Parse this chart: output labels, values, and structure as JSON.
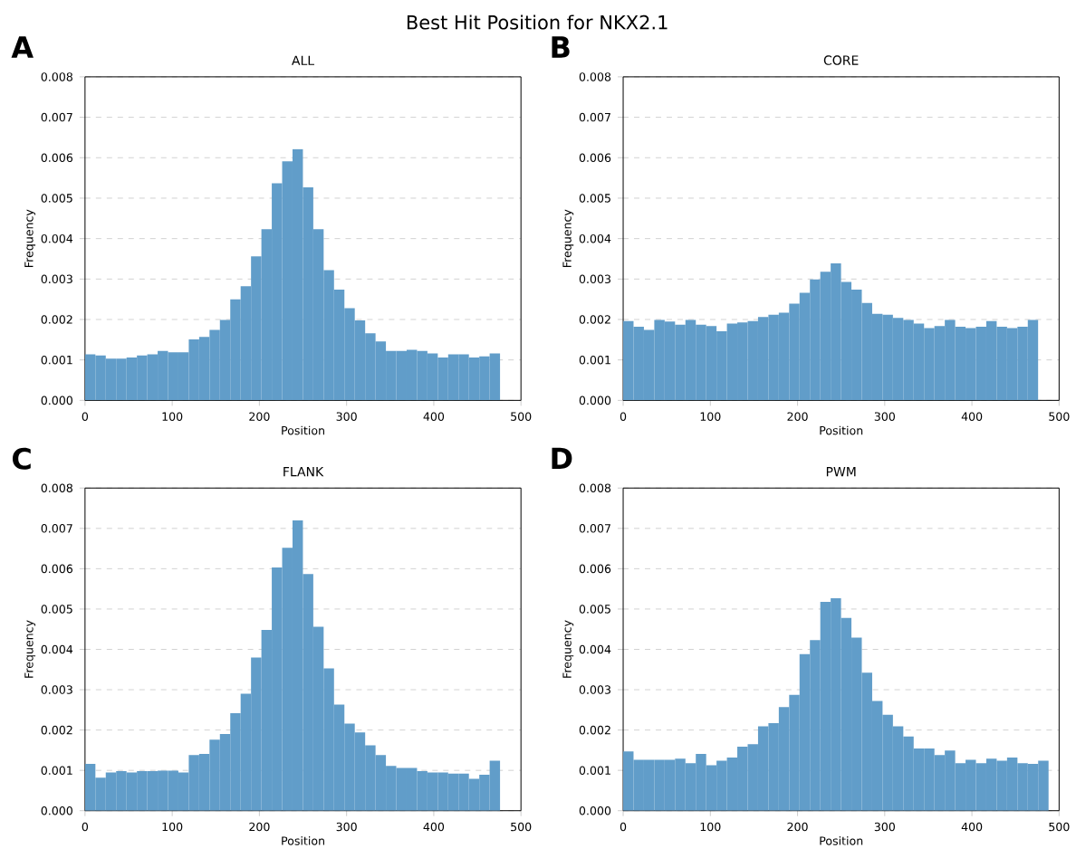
{
  "chart_data": [
    {
      "type": "histogram",
      "title": "ALL",
      "xlabel": "Position",
      "ylabel": "Frequency",
      "annotations": [
        "Best Hit Position for NKX2.1",
        "A"
      ],
      "color": "#619dc9",
      "grid": "y",
      "bins": [
        0,
        11.9,
        23.8,
        35.7,
        47.6,
        59.5,
        71.4,
        83.3,
        95.2,
        107.1,
        119,
        130.9,
        142.8,
        154.7,
        166.6,
        178.5,
        190.4,
        202.3,
        214.2,
        226.1,
        238,
        249.9,
        261.8,
        273.7,
        285.6,
        297.5,
        309.4,
        321.3,
        333.2,
        345.1,
        357,
        368.9,
        380.8,
        392.7,
        404.6,
        416.5,
        428.4,
        440.3,
        452.2,
        464.1,
        476
      ],
      "values": [
        0.00114,
        0.00111,
        0.00103,
        0.00103,
        0.00106,
        0.00111,
        0.00114,
        0.00122,
        0.00119,
        0.00119,
        0.00151,
        0.00157,
        0.00174,
        0.00199,
        0.0025,
        0.00282,
        0.00356,
        0.00423,
        0.00537,
        0.00591,
        0.00621,
        0.00527,
        0.00423,
        0.00322,
        0.00274,
        0.00228,
        0.00198,
        0.00166,
        0.00146,
        0.00122,
        0.00122,
        0.00125,
        0.00122,
        0.00116,
        0.00106,
        0.00114,
        0.00114,
        0.00106,
        0.00109,
        0.00116
      ],
      "xlim": [
        0,
        500
      ],
      "ylim": [
        0,
        0.008
      ],
      "xticks": [
        0,
        100,
        200,
        300,
        400,
        500
      ],
      "yticks": [
        {
          "value": 0,
          "label": "0.000"
        },
        {
          "value": 0.001,
          "label": "0.001"
        },
        {
          "value": 0.002,
          "label": "0.002"
        },
        {
          "value": 0.003,
          "label": "0.003"
        },
        {
          "value": 0.004,
          "label": "0.004"
        },
        {
          "value": 0.005,
          "label": "0.005"
        },
        {
          "value": 0.006,
          "label": "0.006"
        },
        {
          "value": 0.007,
          "label": "0.007"
        },
        {
          "value": 0.008,
          "label": "0.008"
        }
      ]
    },
    {
      "type": "histogram",
      "title": "CORE",
      "xlabel": "Position",
      "ylabel": "Frequency",
      "annotations": [
        "B"
      ],
      "color": "#619dc9",
      "grid": "y",
      "bins": [
        0,
        11.9,
        23.8,
        35.7,
        47.6,
        59.5,
        71.4,
        83.3,
        95.2,
        107.1,
        119,
        130.9,
        142.8,
        154.7,
        166.6,
        178.5,
        190.4,
        202.3,
        214.2,
        226.1,
        238,
        249.9,
        261.8,
        273.7,
        285.6,
        297.5,
        309.4,
        321.3,
        333.2,
        345.1,
        357,
        368.9,
        380.8,
        392.7,
        404.6,
        416.5,
        428.4,
        440.3,
        452.2,
        464.1,
        476
      ],
      "values": [
        0.00196,
        0.00182,
        0.00174,
        0.00199,
        0.00195,
        0.00187,
        0.00199,
        0.00187,
        0.00184,
        0.00171,
        0.0019,
        0.00193,
        0.00196,
        0.00206,
        0.00212,
        0.00217,
        0.00239,
        0.00266,
        0.00299,
        0.00318,
        0.00339,
        0.00293,
        0.00274,
        0.00241,
        0.00214,
        0.00212,
        0.00204,
        0.00199,
        0.0019,
        0.00179,
        0.00184,
        0.00199,
        0.00182,
        0.00179,
        0.00182,
        0.00196,
        0.00182,
        0.00179,
        0.00182,
        0.00199
      ],
      "xlim": [
        0,
        500
      ],
      "ylim": [
        0,
        0.008
      ],
      "xticks": [
        0,
        100,
        200,
        300,
        400,
        500
      ],
      "yticks": [
        {
          "value": 0,
          "label": "0.000"
        },
        {
          "value": 0.001,
          "label": "0.001"
        },
        {
          "value": 0.002,
          "label": "0.002"
        },
        {
          "value": 0.003,
          "label": "0.003"
        },
        {
          "value": 0.004,
          "label": "0.004"
        },
        {
          "value": 0.005,
          "label": "0.005"
        },
        {
          "value": 0.006,
          "label": "0.006"
        },
        {
          "value": 0.007,
          "label": "0.007"
        },
        {
          "value": 0.008,
          "label": "0.008"
        }
      ]
    },
    {
      "type": "histogram",
      "title": "FLANK",
      "xlabel": "Position",
      "ylabel": "Frequency",
      "annotations": [
        "C"
      ],
      "color": "#619dc9",
      "grid": "y",
      "bins": [
        0,
        11.9,
        23.8,
        35.7,
        47.6,
        59.5,
        71.4,
        83.3,
        95.2,
        107.1,
        119,
        130.9,
        142.8,
        154.7,
        166.6,
        178.5,
        190.4,
        202.3,
        214.2,
        226.1,
        238,
        249.9,
        261.8,
        273.7,
        285.6,
        297.5,
        309.4,
        321.3,
        333.2,
        345.1,
        357,
        368.9,
        380.8,
        392.7,
        404.6,
        416.5,
        428.4,
        440.3,
        452.2,
        464.1,
        476
      ],
      "values": [
        0.00116,
        0.00082,
        0.00095,
        0.00098,
        0.00095,
        0.00098,
        0.00098,
        0.00099,
        0.00099,
        0.00095,
        0.00138,
        0.00141,
        0.00176,
        0.0019,
        0.00242,
        0.0029,
        0.0038,
        0.00448,
        0.00603,
        0.00652,
        0.0072,
        0.00587,
        0.00456,
        0.00353,
        0.00263,
        0.00216,
        0.00194,
        0.00162,
        0.00138,
        0.00111,
        0.00106,
        0.00106,
        0.00098,
        0.00095,
        0.00095,
        0.00092,
        0.00092,
        0.00079,
        0.00089,
        0.00124
      ],
      "xlim": [
        0,
        500
      ],
      "ylim": [
        0,
        0.008
      ],
      "xticks": [
        0,
        100,
        200,
        300,
        400,
        500
      ],
      "yticks": [
        {
          "value": 0,
          "label": "0.000"
        },
        {
          "value": 0.001,
          "label": "0.001"
        },
        {
          "value": 0.002,
          "label": "0.002"
        },
        {
          "value": 0.003,
          "label": "0.003"
        },
        {
          "value": 0.004,
          "label": "0.004"
        },
        {
          "value": 0.005,
          "label": "0.005"
        },
        {
          "value": 0.006,
          "label": "0.006"
        },
        {
          "value": 0.007,
          "label": "0.007"
        },
        {
          "value": 0.008,
          "label": "0.008"
        }
      ]
    },
    {
      "type": "histogram",
      "title": "PWM",
      "xlabel": "Position",
      "ylabel": "Frequency",
      "annotations": [
        "D"
      ],
      "color": "#619dc9",
      "grid": "y",
      "bins": [
        0,
        11.9,
        23.8,
        35.7,
        47.6,
        59.5,
        71.4,
        83.3,
        95.2,
        107.1,
        119,
        130.9,
        142.8,
        154.7,
        166.6,
        178.5,
        190.4,
        202.3,
        214.2,
        226.1,
        238,
        249.9,
        261.8,
        273.7,
        285.6,
        297.5,
        309.4,
        321.3,
        333.2,
        345.1,
        357,
        368.9,
        380.8,
        392.7,
        404.6,
        416.5,
        428.4,
        440.3,
        452.2,
        464.1,
        476,
        487.9
      ],
      "values": [
        0.00147,
        0.00126,
        0.00126,
        0.00126,
        0.00126,
        0.00129,
        0.00118,
        0.00141,
        0.00113,
        0.00124,
        0.00132,
        0.00159,
        0.00165,
        0.00209,
        0.00217,
        0.00257,
        0.00287,
        0.00388,
        0.00423,
        0.00518,
        0.00527,
        0.00478,
        0.00429,
        0.00342,
        0.00272,
        0.00238,
        0.00209,
        0.00184,
        0.00154,
        0.00154,
        0.00138,
        0.00149,
        0.00118,
        0.00126,
        0.00118,
        0.00129,
        0.00124,
        0.00132,
        0.00118,
        0.00116,
        0.00124
      ],
      "xlim": [
        0,
        500
      ],
      "ylim": [
        0,
        0.008
      ],
      "xticks": [
        0,
        100,
        200,
        300,
        400,
        500
      ],
      "yticks": [
        {
          "value": 0,
          "label": "0.000"
        },
        {
          "value": 0.001,
          "label": "0.001"
        },
        {
          "value": 0.002,
          "label": "0.002"
        },
        {
          "value": 0.003,
          "label": "0.003"
        },
        {
          "value": 0.004,
          "label": "0.004"
        },
        {
          "value": 0.005,
          "label": "0.005"
        },
        {
          "value": 0.006,
          "label": "0.006"
        },
        {
          "value": 0.007,
          "label": "0.007"
        },
        {
          "value": 0.008,
          "label": "0.008"
        }
      ]
    }
  ]
}
